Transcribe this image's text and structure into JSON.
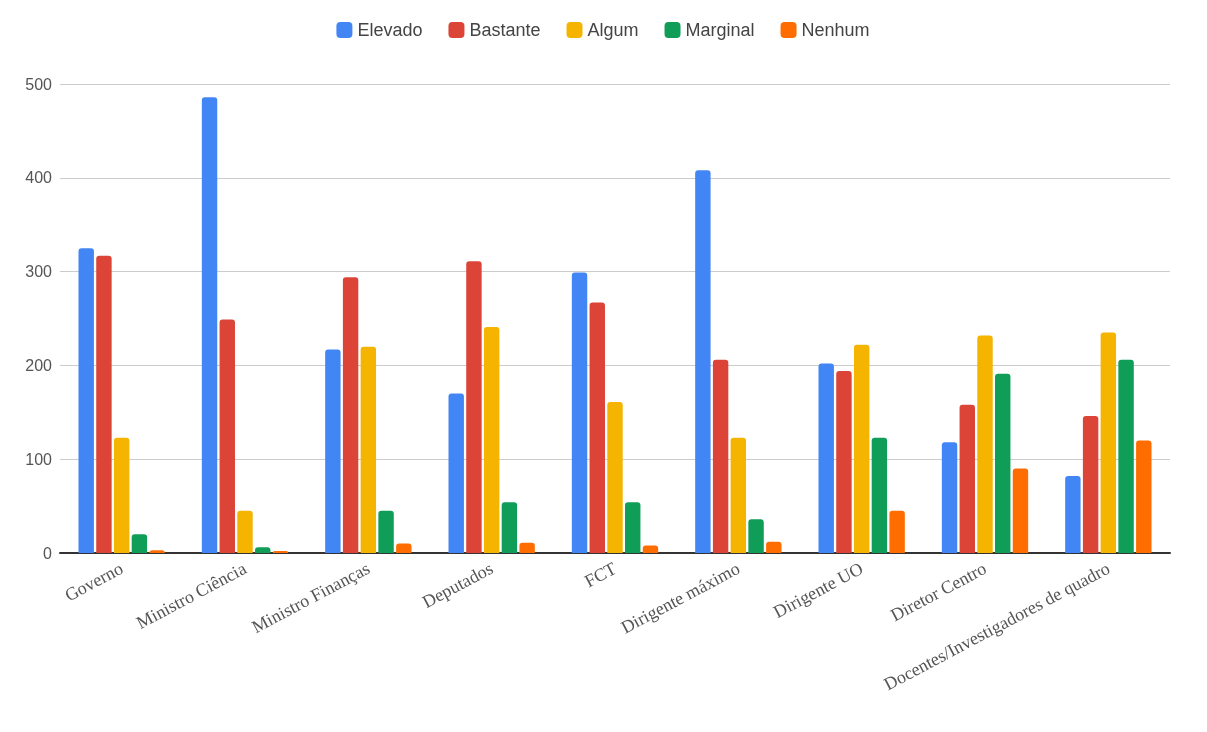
{
  "chart_data": {
    "type": "bar",
    "categories": [
      "Governo",
      "Ministro Ciência",
      "Ministro Finanças",
      "Deputados",
      "FCT",
      "Dirigente máximo",
      "Dirigente UO",
      "Diretor Centro",
      "Docentes/Investigadores de quadro"
    ],
    "series": [
      {
        "name": "Elevado",
        "color": "#4285f4",
        "values": [
          325,
          486,
          217,
          170,
          299,
          408,
          202,
          118,
          82
        ]
      },
      {
        "name": "Bastante",
        "color": "#db4437",
        "values": [
          317,
          249,
          294,
          311,
          267,
          206,
          194,
          158,
          146
        ]
      },
      {
        "name": "Algum",
        "color": "#f4b400",
        "values": [
          123,
          45,
          220,
          241,
          161,
          123,
          222,
          232,
          235
        ]
      },
      {
        "name": "Marginal",
        "color": "#0f9d58",
        "values": [
          20,
          6,
          45,
          54,
          54,
          36,
          123,
          191,
          206
        ]
      },
      {
        "name": "Nenhum",
        "color": "#ff6d01",
        "values": [
          3,
          2,
          10,
          11,
          8,
          12,
          45,
          90,
          120
        ]
      }
    ],
    "ylim": [
      0,
      500
    ],
    "yticks": [
      0,
      100,
      200,
      300,
      400,
      500
    ],
    "grid": "y",
    "legend": "top"
  }
}
